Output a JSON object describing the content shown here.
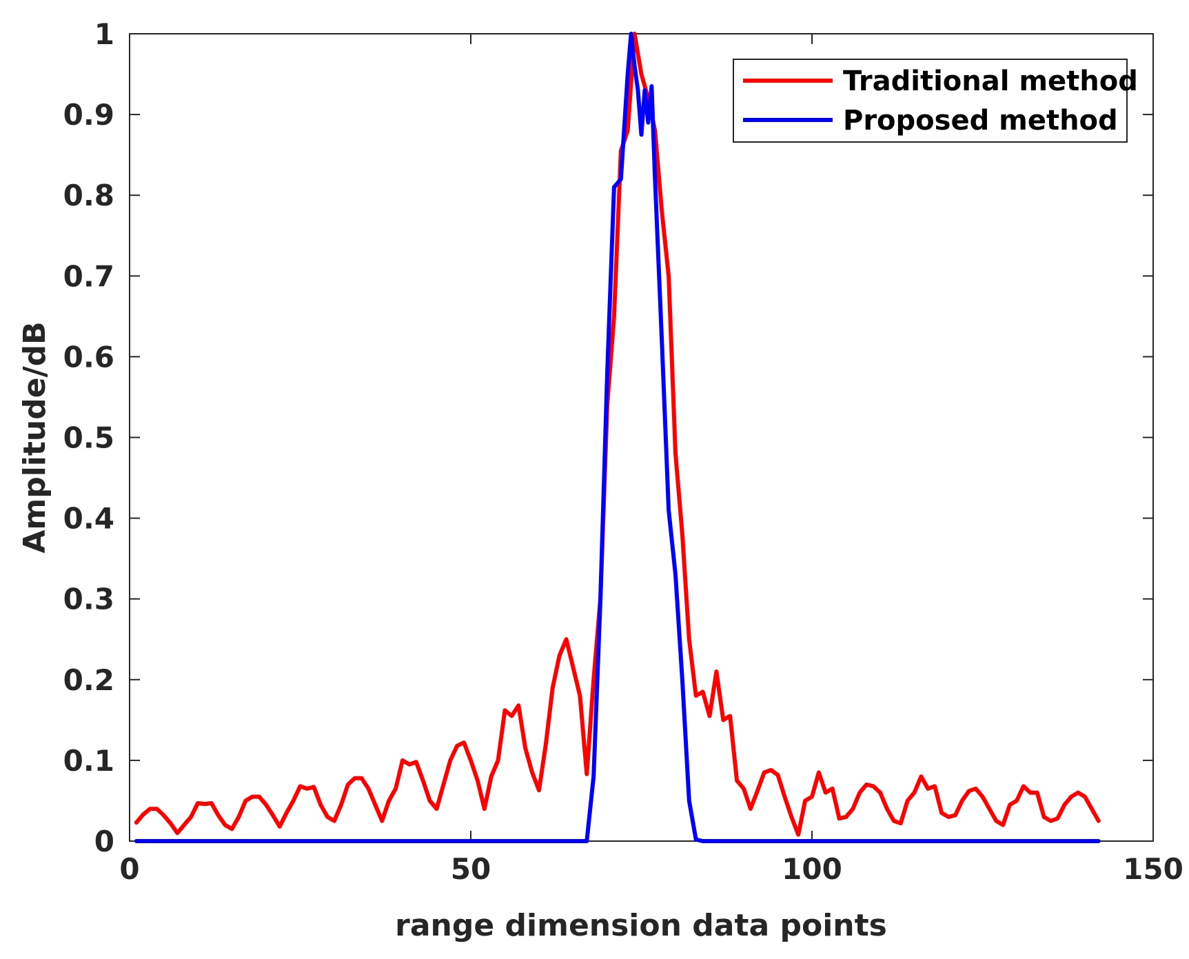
{
  "chart_data": {
    "type": "line",
    "title": "",
    "xlabel": "range dimension data points",
    "ylabel": "Amplitude/dB",
    "xlim": [
      0,
      150
    ],
    "ylim": [
      0,
      1
    ],
    "xticks": [
      0,
      50,
      100,
      150
    ],
    "yticks": [
      0,
      0.1,
      0.2,
      0.3,
      0.4,
      0.5,
      0.6,
      0.7,
      0.8,
      0.9,
      1
    ],
    "xtick_labels": [
      "0",
      "50",
      "100",
      "150"
    ],
    "ytick_labels": [
      "0",
      "0.1",
      "0.2",
      "0.3",
      "0.4",
      "0.5",
      "0.6",
      "0.7",
      "0.8",
      "0.9",
      "1"
    ],
    "grid": false,
    "legend_position": "top-right",
    "series": [
      {
        "name": "Traditional method",
        "color": "#ff0000",
        "x": [
          1,
          2,
          3,
          4,
          5,
          6,
          7,
          8,
          9,
          10,
          11,
          12,
          13,
          14,
          15,
          16,
          17,
          18,
          19,
          20,
          21,
          22,
          23,
          24,
          25,
          26,
          27,
          28,
          29,
          30,
          31,
          32,
          33,
          34,
          35,
          36,
          37,
          38,
          39,
          40,
          41,
          42,
          43,
          44,
          45,
          46,
          47,
          48,
          49,
          50,
          51,
          52,
          53,
          54,
          55,
          56,
          57,
          58,
          59,
          60,
          61,
          62,
          63,
          64,
          65,
          66,
          67,
          68,
          69,
          70,
          71,
          72,
          73,
          74,
          75,
          76,
          77,
          78,
          79,
          80,
          81,
          82,
          83,
          84,
          85,
          86,
          87,
          88,
          89,
          90,
          91,
          92,
          93,
          94,
          95,
          96,
          97,
          98,
          99,
          100,
          101,
          102,
          103,
          104,
          105,
          106,
          107,
          108,
          109,
          110,
          111,
          112,
          113,
          114,
          115,
          116,
          117,
          118,
          119,
          120,
          121,
          122,
          123,
          124,
          125,
          126,
          127,
          128,
          129,
          130,
          131,
          132,
          133,
          134,
          135,
          136,
          137,
          138,
          139,
          140,
          141,
          142
        ],
        "values": [
          0.023,
          0.033,
          0.04,
          0.04,
          0.032,
          0.022,
          0.01,
          0.02,
          0.03,
          0.047,
          0.046,
          0.047,
          0.032,
          0.02,
          0.015,
          0.03,
          0.05,
          0.055,
          0.055,
          0.045,
          0.032,
          0.018,
          0.035,
          0.05,
          0.068,
          0.065,
          0.067,
          0.045,
          0.03,
          0.025,
          0.045,
          0.07,
          0.078,
          0.078,
          0.065,
          0.045,
          0.025,
          0.05,
          0.065,
          0.1,
          0.095,
          0.098,
          0.075,
          0.05,
          0.04,
          0.07,
          0.1,
          0.118,
          0.122,
          0.1,
          0.075,
          0.04,
          0.08,
          0.1,
          0.162,
          0.155,
          0.168,
          0.115,
          0.085,
          0.063,
          0.12,
          0.19,
          0.23,
          0.25,
          0.215,
          0.18,
          0.083,
          0.2,
          0.3,
          0.54,
          0.65,
          0.855,
          0.88,
          1.0,
          0.95,
          0.92,
          0.88,
          0.78,
          0.7,
          0.48,
          0.38,
          0.25,
          0.18,
          0.185,
          0.155,
          0.21,
          0.15,
          0.155,
          0.075,
          0.065,
          0.04,
          0.062,
          0.085,
          0.088,
          0.082,
          0.055,
          0.03,
          0.008,
          0.05,
          0.055,
          0.085,
          0.06,
          0.065,
          0.028,
          0.03,
          0.04,
          0.06,
          0.07,
          0.068,
          0.06,
          0.04,
          0.025,
          0.022,
          0.05,
          0.06,
          0.08,
          0.065,
          0.068,
          0.035,
          0.03,
          0.032,
          0.05,
          0.062,
          0.065,
          0.055,
          0.04,
          0.025,
          0.02,
          0.045,
          0.05,
          0.068,
          0.06,
          0.06,
          0.03,
          0.025,
          0.028,
          0.045,
          0.055,
          0.06,
          0.055,
          0.04,
          0.025
        ]
      },
      {
        "name": "Proposed method",
        "color": "#0000ff",
        "x": [
          1,
          10,
          20,
          30,
          40,
          50,
          60,
          66,
          67,
          68,
          69,
          70,
          71,
          72,
          73,
          73.5,
          74,
          74.5,
          75,
          75.5,
          76,
          76.5,
          77,
          78,
          79,
          80,
          81,
          82,
          83,
          84,
          90,
          100,
          110,
          120,
          130,
          142
        ],
        "values": [
          0,
          0,
          0,
          0,
          0,
          0,
          0,
          0,
          0,
          0.08,
          0.3,
          0.58,
          0.81,
          0.82,
          0.95,
          1.0,
          0.96,
          0.93,
          0.875,
          0.93,
          0.89,
          0.935,
          0.82,
          0.62,
          0.41,
          0.33,
          0.2,
          0.05,
          0.002,
          0,
          0,
          0,
          0,
          0,
          0,
          0
        ]
      }
    ]
  }
}
